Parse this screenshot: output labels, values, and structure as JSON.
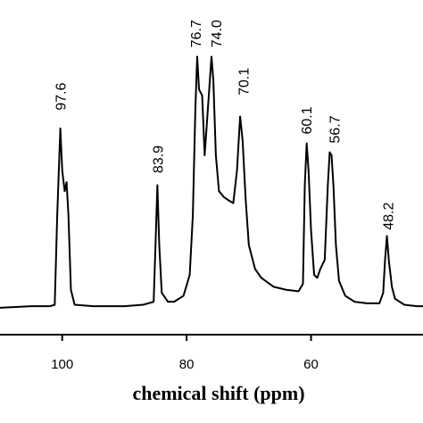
{
  "chart_data": {
    "type": "line",
    "xlabel": "chemical shift  (ppm)",
    "xlim": [
      110,
      42
    ],
    "xticks": [
      100,
      80,
      60
    ],
    "ylim": [
      0,
      100
    ],
    "color": "#000000",
    "x": [
      110,
      105,
      102,
      101.2,
      100.8,
      100.3,
      100.0,
      99.6,
      99.3,
      99.0,
      98.6,
      98.0,
      95,
      90,
      87,
      85.3,
      85.0,
      84.7,
      84.4,
      84.0,
      83.0,
      82,
      80.5,
      79.5,
      79.0,
      78.6,
      78.3,
      78.0,
      77.5,
      77.1,
      76.6,
      76.0,
      75.7,
      75.3,
      74.8,
      74.0,
      73.3,
      72.5,
      71.9,
      71.4,
      71.0,
      70.5,
      70.0,
      69,
      68,
      66,
      64,
      62,
      61.3,
      61.0,
      60.7,
      60.4,
      60.0,
      59.5,
      59.0,
      58.5,
      57.8,
      57.3,
      57.0,
      56.7,
      56.4,
      56.0,
      55.5,
      54.5,
      53,
      51,
      49,
      48.4,
      48.1,
      47.8,
      47.5,
      47.0,
      46.5,
      45,
      43,
      42
    ],
    "values": [
      9,
      9.5,
      9.5,
      10,
      40,
      69,
      55,
      48,
      51,
      40,
      15,
      10,
      9.5,
      9.5,
      10,
      11,
      30,
      50,
      30,
      14,
      11,
      11,
      13,
      20,
      40,
      75,
      93,
      82,
      80,
      60,
      75,
      93,
      85,
      60,
      48,
      46,
      45,
      44,
      55,
      73,
      65,
      45,
      30,
      22,
      19,
      16,
      15,
      14.5,
      17,
      50,
      64,
      55,
      35,
      20,
      19,
      22,
      25,
      50,
      61,
      60,
      50,
      30,
      18,
      13,
      11,
      10.5,
      10.5,
      14,
      25,
      33,
      25,
      16,
      12,
      10,
      9.5,
      9.5
    ],
    "annotations": [
      {
        "text": "97.6",
        "x": 100.3,
        "y": 75
      },
      {
        "text": "83.9",
        "x": 84.7,
        "y": 54
      },
      {
        "text": "76.7",
        "x": 78.6,
        "y": 96
      },
      {
        "text": "74.0",
        "x": 75.3,
        "y": 96
      },
      {
        "text": "70.1",
        "x": 70.9,
        "y": 80
      },
      {
        "text": "60.1",
        "x": 60.8,
        "y": 67
      },
      {
        "text": "56.7",
        "x": 56.3,
        "y": 64
      },
      {
        "text": "48.2",
        "x": 47.7,
        "y": 35
      }
    ]
  }
}
